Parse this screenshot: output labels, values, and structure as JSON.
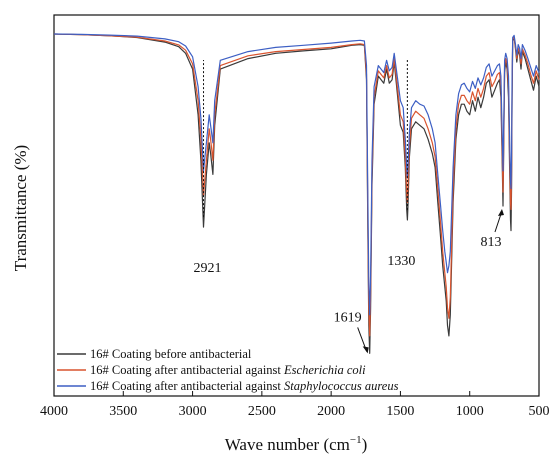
{
  "chart_data": {
    "type": "line",
    "title": "",
    "xlabel": "Wave number (cm",
    "xlabel_sup": "−1",
    "xlabel_close": ")",
    "ylabel": "Transmittance (%)",
    "xlim": [
      4000,
      500
    ],
    "xticks": [
      4000,
      3500,
      3000,
      2500,
      2000,
      1500,
      1000,
      500
    ],
    "xtick_labels": [
      "4000",
      "3500",
      "3000",
      "2500",
      "2000",
      "1500",
      "1000",
      "500"
    ],
    "ylim": [
      0,
      100
    ],
    "y_ticks_shown": false,
    "grid": false,
    "legend_position": "bottom-left",
    "annotations": [
      {
        "text": "2921",
        "x": 2921,
        "marker": "dotted-line"
      },
      {
        "text": "1330",
        "x": 1450,
        "marker": "dotted-line"
      },
      {
        "text": "1619",
        "x": 1722,
        "marker": "arrow"
      },
      {
        "text": "813",
        "x": 760,
        "marker": "arrow"
      }
    ],
    "series": [
      {
        "name_prefix": "16# Coating before antibacterial",
        "name_italic": "",
        "color": "#3a3a3a",
        "x": [
          4000,
          3800,
          3600,
          3400,
          3200,
          3100,
          3050,
          3000,
          2960,
          2940,
          2921,
          2900,
          2880,
          2870,
          2853,
          2840,
          2800,
          2600,
          2400,
          2200,
          2000,
          1850,
          1790,
          1760,
          1745,
          1735,
          1728,
          1722,
          1715,
          1705,
          1690,
          1660,
          1620,
          1600,
          1580,
          1560,
          1545,
          1520,
          1500,
          1480,
          1465,
          1455,
          1450,
          1445,
          1435,
          1420,
          1390,
          1360,
          1330,
          1300,
          1270,
          1250,
          1230,
          1210,
          1195,
          1180,
          1170,
          1160,
          1150,
          1140,
          1120,
          1100,
          1080,
          1060,
          1040,
          1020,
          1000,
          980,
          960,
          940,
          920,
          900,
          880,
          860,
          840,
          820,
          800,
          785,
          775,
          765,
          760,
          755,
          748,
          740,
          730,
          720,
          712,
          706,
          702,
          698,
          694,
          690,
          680,
          670,
          660,
          650,
          640,
          630,
          620,
          600,
          580,
          560,
          540,
          520,
          500
        ],
        "y": [
          98.0,
          97.8,
          97.5,
          97.0,
          95.7,
          94.4,
          92.5,
          88.0,
          75.0,
          62.0,
          43.0,
          58.0,
          67.0,
          64.0,
          58.0,
          72.0,
          88.0,
          91.0,
          92.5,
          93.2,
          93.8,
          94.8,
          95.0,
          94.8,
          85.0,
          40.0,
          15.0,
          7.0,
          20.0,
          55.0,
          78.0,
          86.0,
          84.0,
          88.0,
          84.0,
          85.0,
          90.0,
          80.0,
          72.0,
          70.0,
          60.0,
          48.0,
          45.0,
          50.0,
          63.0,
          71.0,
          73.0,
          72.0,
          71.0,
          68.0,
          64.0,
          60.0,
          50.0,
          40.0,
          32.0,
          26.0,
          22.0,
          15.0,
          12.0,
          18.0,
          50.0,
          68.0,
          75.0,
          78.0,
          78.0,
          76.0,
          75.0,
          79.0,
          76.0,
          80.0,
          77.0,
          80.0,
          84.0,
          85.0,
          80.0,
          82.0,
          84.0,
          85.0,
          80.0,
          60.0,
          49.0,
          65.0,
          87.0,
          90.0,
          88.0,
          80.0,
          60.0,
          45.0,
          42.0,
          55.0,
          80.0,
          96.0,
          97.0,
          94.0,
          90.0,
          93.5,
          92.0,
          88.0,
          93.0,
          91.0,
          88.0,
          85.0,
          82.0,
          86.0,
          83.0
        ]
      },
      {
        "name_prefix": "16# Coating after antibacterial against ",
        "name_italic": "Escherichia coli",
        "color": "#d9542f",
        "x": [
          4000,
          3800,
          3600,
          3400,
          3200,
          3100,
          3050,
          3000,
          2960,
          2940,
          2921,
          2900,
          2880,
          2870,
          2853,
          2840,
          2800,
          2600,
          2400,
          2200,
          2000,
          1850,
          1790,
          1760,
          1745,
          1735,
          1728,
          1722,
          1715,
          1705,
          1690,
          1660,
          1620,
          1600,
          1580,
          1560,
          1545,
          1520,
          1500,
          1480,
          1465,
          1455,
          1450,
          1445,
          1435,
          1420,
          1390,
          1360,
          1330,
          1300,
          1270,
          1250,
          1230,
          1210,
          1195,
          1180,
          1170,
          1160,
          1150,
          1140,
          1120,
          1100,
          1080,
          1060,
          1040,
          1020,
          1000,
          980,
          960,
          940,
          920,
          900,
          880,
          860,
          840,
          820,
          800,
          785,
          775,
          765,
          760,
          755,
          748,
          740,
          730,
          720,
          712,
          706,
          702,
          698,
          694,
          690,
          680,
          670,
          660,
          650,
          640,
          630,
          620,
          600,
          580,
          560,
          540,
          520,
          500
        ],
        "y": [
          98.0,
          97.8,
          97.5,
          97.1,
          96.0,
          94.9,
          93.4,
          89.5,
          79.0,
          68.0,
          52.0,
          62.0,
          71.0,
          68.0,
          62.0,
          75.0,
          89.0,
          91.8,
          93.0,
          93.6,
          94.2,
          95.0,
          95.2,
          95.0,
          86.5,
          44.0,
          20.0,
          12.0,
          24.0,
          58.0,
          80.0,
          87.5,
          85.5,
          89.0,
          85.5,
          86.5,
          91.0,
          82.0,
          75.0,
          73.0,
          63.0,
          53.0,
          50.0,
          55.0,
          66.0,
          74.0,
          76.0,
          75.0,
          74.0,
          71.0,
          67.0,
          63.0,
          54.0,
          44.0,
          36.0,
          30.0,
          26.0,
          20.0,
          17.0,
          23.0,
          54.0,
          71.0,
          78.0,
          80.5,
          80.5,
          79.0,
          78.0,
          81.5,
          79.0,
          82.5,
          80.0,
          82.5,
          86.0,
          87.0,
          83.0,
          84.5,
          86.5,
          87.0,
          83.0,
          63.0,
          53.0,
          68.0,
          88.5,
          91.0,
          89.5,
          83.0,
          64.0,
          50.0,
          48.0,
          60.0,
          83.0,
          96.5,
          97.2,
          94.5,
          91.0,
          94.0,
          92.8,
          89.5,
          93.8,
          92.0,
          89.5,
          86.5,
          84.0,
          87.5,
          85.0
        ]
      },
      {
        "name_prefix": "16# Coating after antibacterial against ",
        "name_italic": "Staphylococcus aureus",
        "color": "#3d5fc4",
        "x": [
          4000,
          3800,
          3600,
          3400,
          3200,
          3100,
          3050,
          3000,
          2960,
          2940,
          2921,
          2900,
          2880,
          2870,
          2853,
          2840,
          2800,
          2600,
          2400,
          2200,
          2000,
          1850,
          1790,
          1760,
          1745,
          1735,
          1728,
          1722,
          1715,
          1705,
          1690,
          1660,
          1620,
          1600,
          1580,
          1560,
          1545,
          1520,
          1500,
          1480,
          1465,
          1455,
          1450,
          1445,
          1435,
          1420,
          1390,
          1360,
          1330,
          1300,
          1270,
          1250,
          1230,
          1210,
          1195,
          1180,
          1170,
          1160,
          1150,
          1140,
          1120,
          1100,
          1080,
          1060,
          1040,
          1020,
          1000,
          980,
          960,
          940,
          920,
          900,
          880,
          860,
          840,
          820,
          800,
          785,
          775,
          765,
          760,
          755,
          748,
          740,
          730,
          720,
          712,
          706,
          702,
          698,
          694,
          690,
          680,
          670,
          660,
          650,
          640,
          630,
          620,
          600,
          580,
          560,
          540,
          520,
          500
        ],
        "y": [
          98.0,
          97.9,
          97.7,
          97.4,
          96.6,
          95.8,
          94.6,
          91.5,
          83.0,
          74.0,
          59.0,
          67.0,
          75.0,
          72.0,
          67.0,
          79.0,
          90.5,
          93.0,
          94.2,
          94.8,
          95.4,
          96.0,
          96.2,
          96.0,
          89.0,
          50.0,
          27.0,
          18.0,
          29.0,
          62.0,
          83.0,
          89.0,
          87.0,
          90.5,
          87.5,
          88.5,
          92.5,
          85.0,
          79.0,
          77.0,
          68.0,
          60.0,
          57.0,
          61.0,
          70.0,
          77.0,
          79.0,
          78.0,
          77.5,
          75.0,
          71.0,
          67.0,
          58.0,
          49.0,
          42.0,
          36.0,
          33.0,
          30.0,
          32.0,
          36.0,
          60.0,
          75.0,
          81.0,
          83.5,
          84.0,
          82.5,
          81.5,
          84.5,
          82.5,
          85.5,
          83.5,
          85.5,
          88.5,
          89.5,
          86.0,
          87.5,
          89.0,
          89.5,
          86.0,
          68.0,
          59.0,
          72.0,
          90.5,
          92.5,
          91.0,
          86.0,
          69.0,
          56.0,
          54.0,
          65.0,
          86.0,
          97.0,
          97.6,
          95.2,
          92.0,
          95.0,
          94.0,
          91.0,
          95.0,
          93.3,
          91.0,
          88.5,
          86.0,
          89.0,
          87.0
        ]
      }
    ]
  }
}
